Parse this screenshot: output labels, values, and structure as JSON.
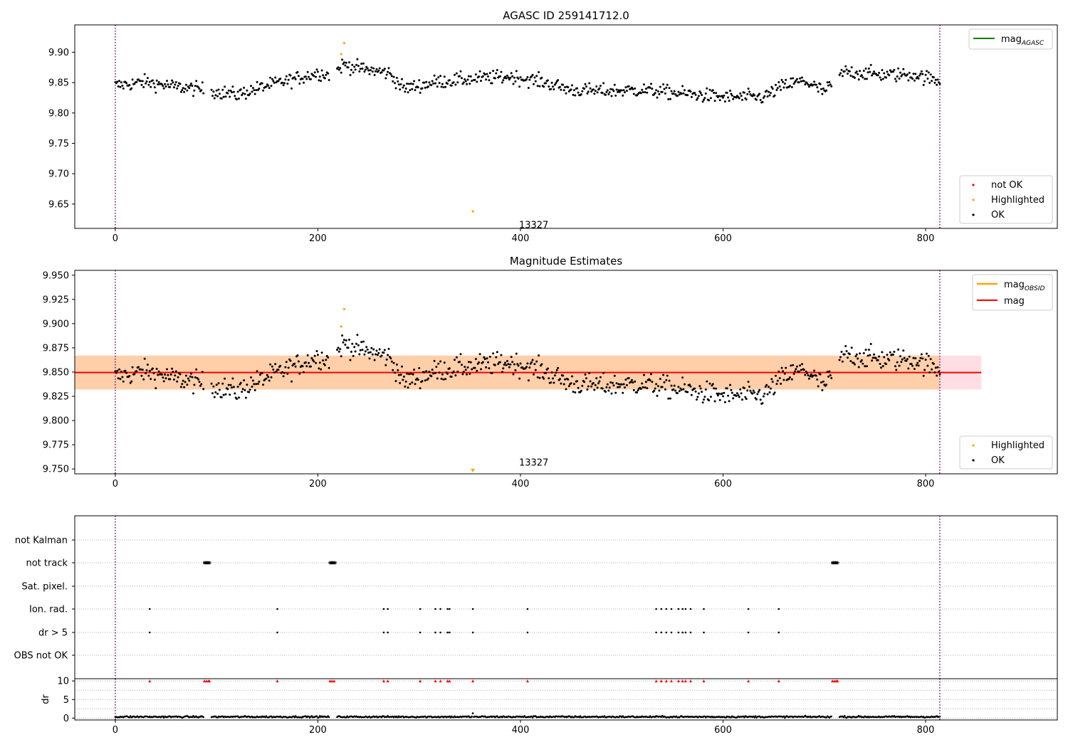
{
  "chart_data": [
    {
      "type": "scatter",
      "title": "AGASC ID 259141712.0",
      "xlim": [
        -40,
        930
      ],
      "ylim": [
        9.61,
        9.945
      ],
      "xticks": [
        0,
        200,
        400,
        600,
        800
      ],
      "xtick_labels": [
        "0",
        "200",
        "400",
        "600",
        "800"
      ],
      "yticks": [
        9.65,
        9.7,
        9.75,
        9.8,
        9.85,
        9.9
      ],
      "ytick_labels": [
        "9.65",
        "9.70",
        "9.75",
        "9.80",
        "9.85",
        "9.90"
      ],
      "obsid_lines": [
        0,
        814
      ],
      "annotation": {
        "text": "13327",
        "x": 407,
        "y": 9.615
      },
      "legend_upper": [
        {
          "label": "mag",
          "sub": "AGASC",
          "color": "#008000",
          "kind": "line"
        }
      ],
      "legend_lower": [
        {
          "label": "not OK",
          "color": "#ff0000",
          "kind": "dot"
        },
        {
          "label": "Highlighted",
          "color": "#ffa500",
          "kind": "dot"
        },
        {
          "label": "OK",
          "color": "#000000",
          "kind": "dot"
        }
      ],
      "highlighted_points": [
        [
          223,
          9.897
        ],
        [
          226,
          9.915
        ],
        [
          353,
          9.638
        ]
      ]
    },
    {
      "type": "scatter",
      "title": "Magnitude Estimates",
      "xlim": [
        -40,
        930
      ],
      "ylim": [
        9.745,
        9.955
      ],
      "xticks": [
        0,
        200,
        400,
        600,
        800
      ],
      "xtick_labels": [
        "0",
        "200",
        "400",
        "600",
        "800"
      ],
      "yticks": [
        9.75,
        9.775,
        9.8,
        9.825,
        9.85,
        9.875,
        9.9,
        9.925,
        9.95
      ],
      "ytick_labels": [
        "9.750",
        "9.775",
        "9.800",
        "9.825",
        "9.850",
        "9.875",
        "9.900",
        "9.925",
        "9.950"
      ],
      "mean_mag": 9.8495,
      "band": [
        9.832,
        9.867
      ],
      "band_x": [
        -40,
        855
      ],
      "obsid_lines": [
        0,
        814
      ],
      "annotation": {
        "text": "13327",
        "x": 407,
        "y": 9.7505
      },
      "legend_upper": [
        {
          "label": "mag",
          "sub": "OBSID",
          "color": "#ffa500",
          "kind": "line"
        },
        {
          "label": "mag",
          "sub": "",
          "color": "#ff0000",
          "kind": "line"
        }
      ],
      "legend_lower": [
        {
          "label": "Highlighted",
          "color": "#ffa500",
          "kind": "dot"
        },
        {
          "label": "OK",
          "color": "#000000",
          "kind": "dot"
        }
      ],
      "highlighted_points": [
        [
          223,
          9.897
        ],
        [
          226,
          9.915
        ]
      ],
      "lower_limit_marker": {
        "x": 353,
        "y": 9.748
      }
    },
    {
      "type": "scatter",
      "title": "",
      "xlim": [
        -40,
        930
      ],
      "xticks": [
        0,
        200,
        400,
        600,
        800
      ],
      "xtick_labels": [
        "0",
        "200",
        "400",
        "600",
        "800"
      ],
      "flag_categories": [
        "not Kalman",
        "not track",
        "Sat. pixel.",
        "Ion. rad.",
        "dr > 5",
        "OBS not OK"
      ],
      "flag_points": {
        "not Kalman": [],
        "not track": [
          88,
          89,
          90,
          91,
          92,
          93,
          212,
          213,
          214,
          215,
          216,
          217,
          708,
          709,
          710,
          711,
          712,
          713
        ],
        "Sat. pixel.": [],
        "Ion. rad.": [
          34,
          160,
          265,
          269,
          301,
          316,
          321,
          328,
          330,
          353,
          407,
          534,
          539,
          544,
          549,
          556,
          560,
          563,
          568,
          581,
          625,
          655
        ],
        "dr > 5": [
          34,
          160,
          265,
          269,
          301,
          316,
          321,
          328,
          330,
          353,
          407,
          534,
          539,
          544,
          549,
          556,
          560,
          563,
          568,
          581,
          625,
          655
        ],
        "OBS not OK": []
      },
      "dr_ylabel": "dr",
      "dr_ylim": [
        -0.5,
        10.6
      ],
      "dr_yticks": [
        0,
        5,
        10
      ],
      "dr_ytick_labels": [
        "0",
        "5",
        "10"
      ],
      "dr_capped_markers": [
        34,
        88,
        90,
        92,
        93,
        160,
        212,
        214,
        216,
        265,
        269,
        301,
        316,
        321,
        328,
        330,
        353,
        407,
        534,
        539,
        544,
        549,
        556,
        560,
        563,
        568,
        581,
        625,
        655,
        708,
        710,
        712,
        713
      ],
      "obsid_lines": [
        0,
        814
      ]
    }
  ]
}
